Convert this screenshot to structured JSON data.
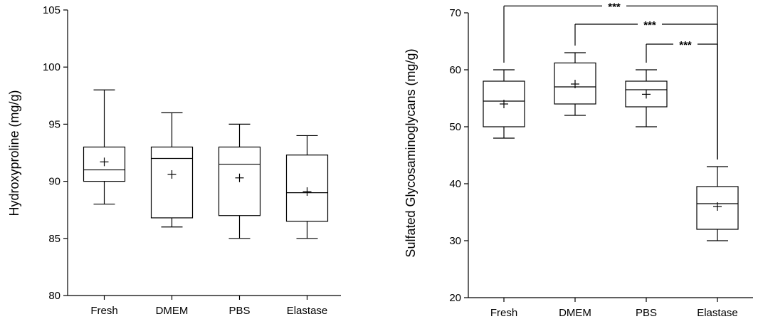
{
  "chart_data": [
    {
      "type": "box",
      "title": "",
      "xlabel": "",
      "ylabel": "Hydroxyproline (mg/g)",
      "ylim": [
        80,
        105
      ],
      "yticks": [
        80,
        85,
        90,
        95,
        100,
        105
      ],
      "grid": false,
      "categories": [
        "Fresh",
        "DMEM",
        "PBS",
        "Elastase"
      ],
      "boxes": [
        {
          "min": 88,
          "q1": 90,
          "median": 91,
          "q3": 93,
          "max": 98,
          "mean": 91.7
        },
        {
          "min": 86,
          "q1": 86.8,
          "median": 92,
          "q3": 93,
          "max": 96,
          "mean": 90.6
        },
        {
          "min": 85,
          "q1": 87,
          "median": 91.5,
          "q3": 93,
          "max": 95,
          "mean": 90.3
        },
        {
          "min": 85,
          "q1": 86.5,
          "median": 89,
          "q3": 92.3,
          "max": 94,
          "mean": 89.1
        }
      ],
      "significance": []
    },
    {
      "type": "box",
      "title": "",
      "xlabel": "",
      "ylabel": "Sulfated Glycosaminoglycans (mg/g)",
      "ylim": [
        20,
        70
      ],
      "yticks": [
        20,
        30,
        40,
        50,
        60,
        70
      ],
      "grid": false,
      "categories": [
        "Fresh",
        "DMEM",
        "PBS",
        "Elastase"
      ],
      "boxes": [
        {
          "min": 48,
          "q1": 50,
          "median": 54.5,
          "q3": 58,
          "max": 60,
          "mean": 54
        },
        {
          "min": 52,
          "q1": 54,
          "median": 57,
          "q3": 61.2,
          "max": 63,
          "mean": 57.5
        },
        {
          "min": 50,
          "q1": 53.5,
          "median": 56.5,
          "q3": 58,
          "max": 60,
          "mean": 55.7
        },
        {
          "min": 30,
          "q1": 32,
          "median": 36.5,
          "q3": 39.5,
          "max": 43,
          "mean": 36
        }
      ],
      "significance": [
        {
          "from": "Fresh",
          "to": "Elastase",
          "label": "***",
          "level": 71.2
        },
        {
          "from": "DMEM",
          "to": "Elastase",
          "label": "***",
          "level": 68
        },
        {
          "from": "PBS",
          "to": "Elastase",
          "label": "***",
          "level": 64.5
        }
      ]
    }
  ]
}
